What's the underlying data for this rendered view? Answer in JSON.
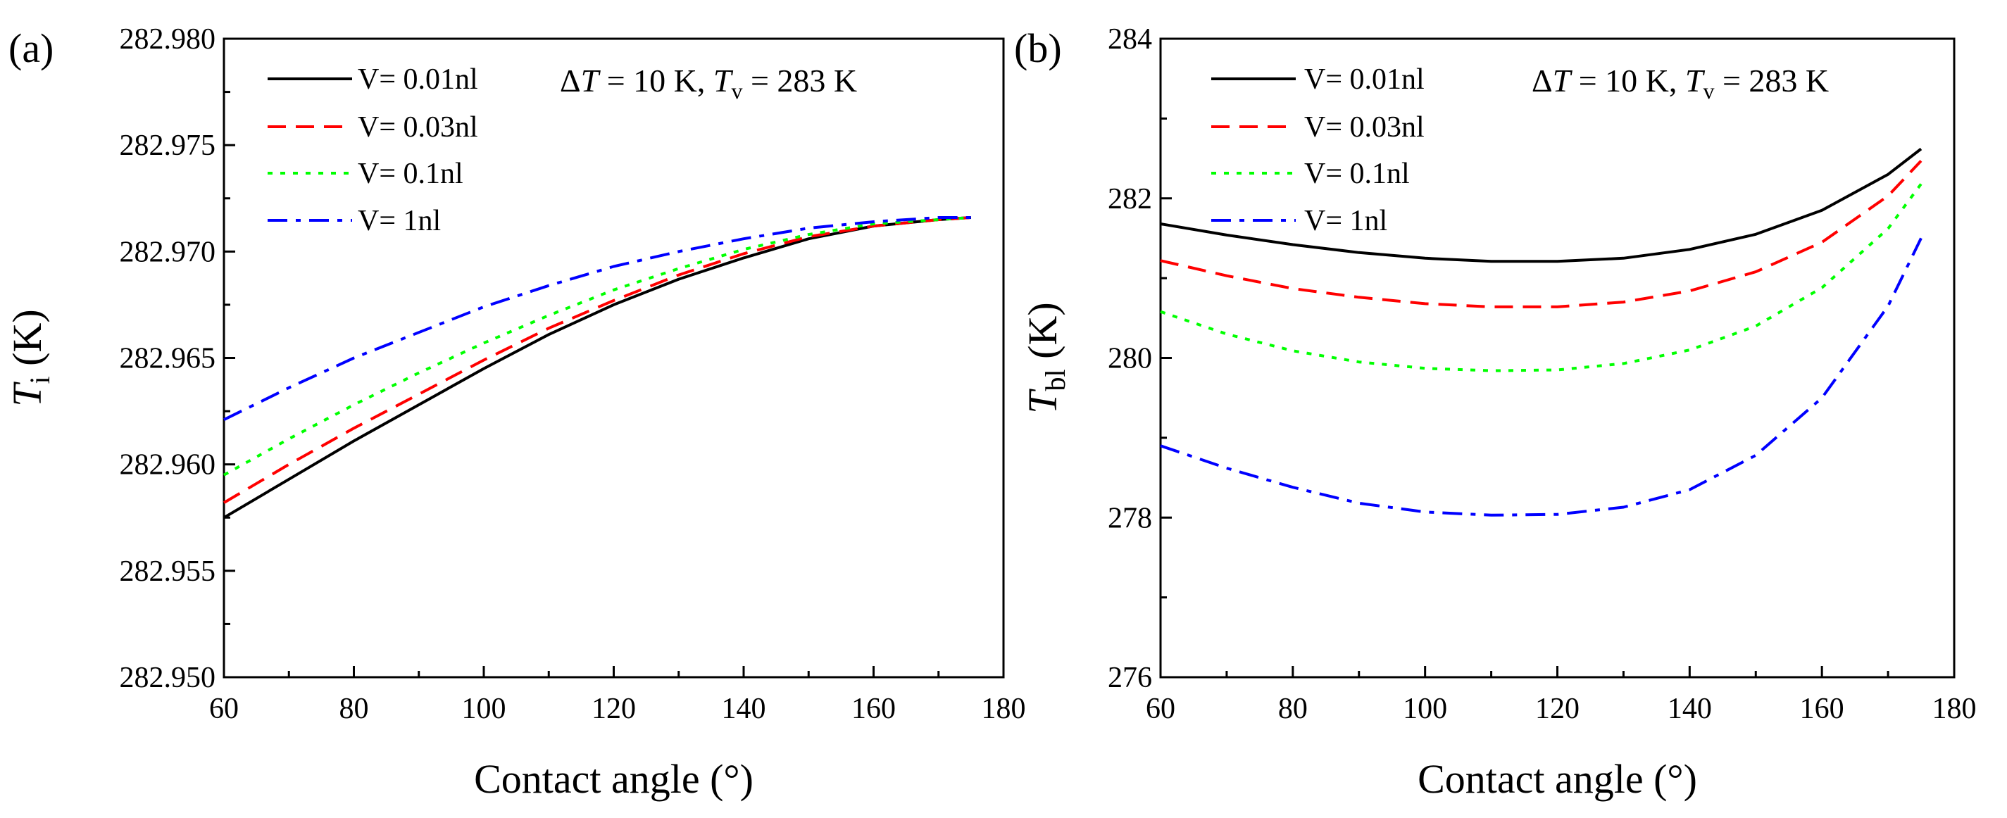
{
  "chart_data": [
    {
      "type": "line",
      "panel_label": "(a)",
      "xlabel": "Contact angle (°)",
      "ylabel_main": "T",
      "ylabel_sub": "i",
      "ylabel_unit": " (K)",
      "xlim": [
        60,
        180
      ],
      "ylim": [
        282.95,
        282.98
      ],
      "xticks": [
        60,
        80,
        100,
        120,
        140,
        160,
        180
      ],
      "yticks": [
        282.95,
        282.955,
        282.96,
        282.965,
        282.97,
        282.975,
        282.98
      ],
      "ytick_labels": [
        "282.950",
        "282.955",
        "282.960",
        "282.965",
        "282.970",
        "282.975",
        "282.980"
      ],
      "annotation": {
        "delta": "Δ",
        "T": "T",
        "eq1": " = 10 K, ",
        "T2": "T",
        "sub": "v",
        "eq2": " = 283 K"
      },
      "legend": "top-left",
      "series": [
        {
          "name": "V= 0.01nl",
          "color": "#000000",
          "dash": "solid",
          "x": [
            60,
            70,
            80,
            90,
            100,
            110,
            120,
            130,
            140,
            150,
            160,
            170,
            175
          ],
          "y": [
            282.9575,
            282.9593,
            282.9611,
            282.9628,
            282.9645,
            282.9661,
            282.9675,
            282.9687,
            282.9697,
            282.9706,
            282.9712,
            282.9715,
            282.9716
          ]
        },
        {
          "name": "V= 0.03nl",
          "color": "#ff0000",
          "dash": "dashed",
          "x": [
            60,
            70,
            80,
            90,
            100,
            110,
            120,
            130,
            140,
            150,
            160,
            170,
            175
          ],
          "y": [
            282.9582,
            282.96,
            282.9617,
            282.9633,
            282.9649,
            282.9664,
            282.9677,
            282.9689,
            282.9699,
            282.9707,
            282.9712,
            282.9715,
            282.9716
          ]
        },
        {
          "name": "V= 0.1nl",
          "color": "#00ff00",
          "dash": "dotted",
          "x": [
            60,
            70,
            80,
            90,
            100,
            110,
            120,
            130,
            140,
            150,
            160,
            170,
            175
          ],
          "y": [
            282.9595,
            282.9612,
            282.9628,
            282.9643,
            282.9657,
            282.967,
            282.9682,
            282.9692,
            282.9701,
            282.9708,
            282.9713,
            282.9715,
            282.9716
          ]
        },
        {
          "name": "V= 1nl",
          "color": "#0000ff",
          "dash": "dashdot",
          "x": [
            60,
            70,
            80,
            90,
            100,
            110,
            120,
            130,
            140,
            150,
            160,
            170,
            175
          ],
          "y": [
            282.9621,
            282.9636,
            282.965,
            282.9662,
            282.9674,
            282.9684,
            282.9693,
            282.97,
            282.9706,
            282.9711,
            282.9714,
            282.9716,
            282.9716
          ]
        }
      ]
    },
    {
      "type": "line",
      "panel_label": "(b)",
      "xlabel": "Contact angle (°)",
      "ylabel_main": "T",
      "ylabel_sub": "bl",
      "ylabel_unit": " (K)",
      "xlim": [
        60,
        180
      ],
      "ylim": [
        276,
        284
      ],
      "xticks": [
        60,
        80,
        100,
        120,
        140,
        160,
        180
      ],
      "yticks": [
        276,
        278,
        280,
        282,
        284
      ],
      "ytick_labels": [
        "276",
        "278",
        "280",
        "282",
        "284"
      ],
      "annotation": {
        "delta": "Δ",
        "T": "T",
        "eq1": " = 10 K, ",
        "T2": "T",
        "sub": "v",
        "eq2": " = 283 K"
      },
      "legend": "top-left",
      "series": [
        {
          "name": "V= 0.01nl",
          "color": "#000000",
          "dash": "solid",
          "x": [
            60,
            70,
            80,
            90,
            100,
            110,
            120,
            130,
            140,
            150,
            160,
            170,
            175
          ],
          "y": [
            281.68,
            281.54,
            281.42,
            281.32,
            281.25,
            281.21,
            281.21,
            281.25,
            281.36,
            281.55,
            281.85,
            282.3,
            282.62
          ]
        },
        {
          "name": "V= 0.03nl",
          "color": "#ff0000",
          "dash": "dashed",
          "x": [
            60,
            70,
            80,
            90,
            100,
            110,
            120,
            130,
            140,
            150,
            160,
            170,
            175
          ],
          "y": [
            281.22,
            281.03,
            280.87,
            280.76,
            280.68,
            280.64,
            280.64,
            280.7,
            280.84,
            281.08,
            281.45,
            282.03,
            282.47
          ]
        },
        {
          "name": "V= 0.1nl",
          "color": "#00ff00",
          "dash": "dotted",
          "x": [
            60,
            70,
            80,
            90,
            100,
            110,
            120,
            130,
            140,
            150,
            160,
            170,
            175
          ],
          "y": [
            280.58,
            280.3,
            280.09,
            279.95,
            279.87,
            279.84,
            279.85,
            279.93,
            280.1,
            280.4,
            280.88,
            281.62,
            282.18
          ]
        },
        {
          "name": "V= 1nl",
          "color": "#0000ff",
          "dash": "dashdot",
          "x": [
            60,
            70,
            80,
            90,
            100,
            110,
            120,
            130,
            140,
            150,
            160,
            170,
            175
          ],
          "y": [
            278.9,
            278.62,
            278.38,
            278.18,
            278.07,
            278.03,
            278.04,
            278.13,
            278.35,
            278.78,
            279.5,
            280.65,
            281.5
          ]
        }
      ]
    }
  ]
}
